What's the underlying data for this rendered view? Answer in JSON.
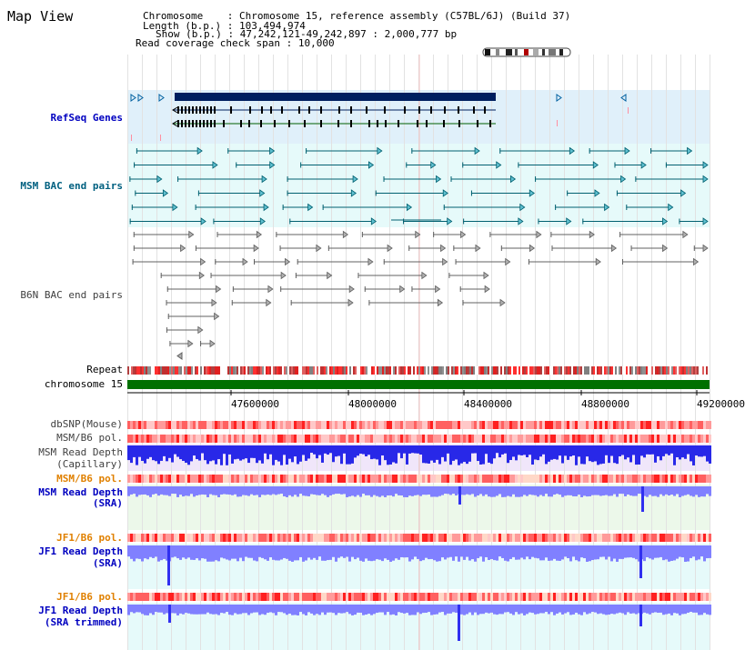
{
  "header": {
    "title": "Map View",
    "chromosome_label": "Chromosome",
    "chromosome_value": "Chromosome 15, reference assembly (C57BL/6J) (Build 37)",
    "length_label": "Length (b.p.)",
    "length_value": "103,494,974",
    "show_label": "Show (b.p.)",
    "show_value": "47,242,121-49,242,897 : 2,000,777 bp",
    "coverage_label": "Read coverage check span",
    "coverage_value": "10,000"
  },
  "tracks": {
    "refseq": "RefSeq Genes",
    "msm_bac": "MSM BAC end pairs",
    "b6n_bac": "B6N BAC end pairs",
    "repeat": "Repeat",
    "chromosome": "chromosome 15",
    "dbsnp": "dbSNP(Mouse)",
    "msm_b6_pol": "MSM/B6 pol.",
    "msm_depth_cap_1": "MSM Read Depth",
    "msm_depth_cap_2": "(Capillary)",
    "msm_b6_pol_2": "MSM/B6 pol.",
    "msm_depth_sra_1": "MSM Read Depth",
    "msm_depth_sra_2": "(SRA)",
    "jf1_b6_pol": "JF1/B6 pol.",
    "jf1_depth_sra_1": "JF1 Read Depth",
    "jf1_depth_sra_2": "(SRA)",
    "jf1_b6_pol_2": "JF1/B6 pol.",
    "jf1_depth_trim_1": "JF1 Read Depth",
    "jf1_depth_trim_2": "(SRA trimmed)"
  },
  "axis": {
    "ticks": [
      "47600000",
      "48000000",
      "48400000",
      "48800000",
      "49200000"
    ]
  },
  "colors": {
    "refseq_bg": "#e0f0fa",
    "msm_bac_bg": "#e6fafa",
    "gene_dark": "#001f5f",
    "msm_bac_line": "#006070",
    "b6n_line": "#606060",
    "chrom_green": "#007000",
    "label_blue": "#0000c0",
    "label_teal": "#006080",
    "label_orange": "#e08000",
    "depth_blue": "#4040ff",
    "depth_light": "#8080ff"
  }
}
